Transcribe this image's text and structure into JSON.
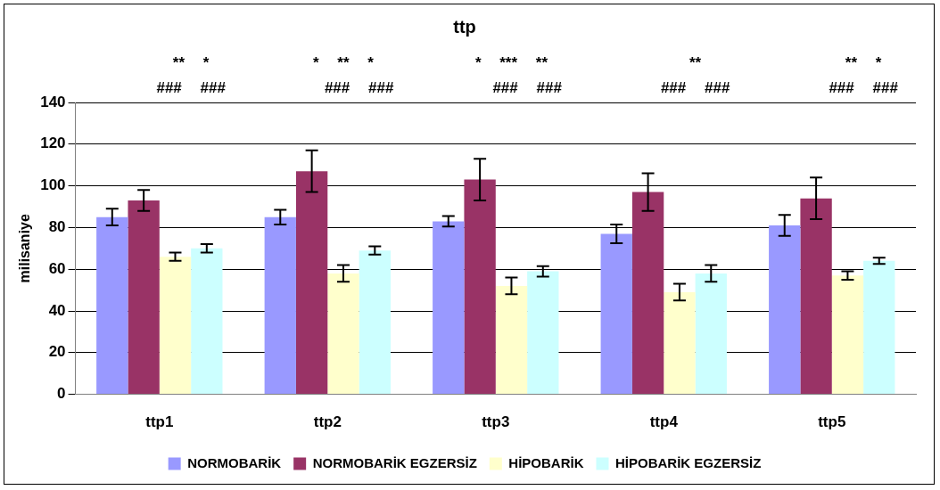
{
  "chart_data": {
    "type": "bar",
    "title": "ttp",
    "ylabel": "milisaniye",
    "categories": [
      "ttp1",
      "ttp2",
      "ttp3",
      "ttp4",
      "ttp5"
    ],
    "series": [
      {
        "name": "NORMOBARİK",
        "color": "#9999ff",
        "values": [
          85,
          85,
          83,
          77,
          81
        ],
        "errors": [
          4,
          3.5,
          2.5,
          4.5,
          5
        ]
      },
      {
        "name": "NORMOBARİK EGZERSİZ",
        "color": "#993366",
        "values": [
          93,
          107,
          103,
          97,
          94
        ],
        "errors": [
          5,
          10,
          10,
          9,
          10
        ]
      },
      {
        "name": "HİPOBARİK",
        "color": "#ffffcc",
        "values": [
          66,
          58,
          52,
          49,
          57
        ],
        "errors": [
          2,
          4,
          4,
          4,
          2
        ]
      },
      {
        "name": "HİPOBARİK EGZERSİZ",
        "color": "#ccffff",
        "values": [
          70,
          69,
          59,
          58,
          64
        ],
        "errors": [
          2,
          2,
          2.5,
          4,
          1.5
        ]
      }
    ],
    "ylim": [
      0,
      140
    ],
    "yticks": [
      0,
      20,
      40,
      60,
      80,
      100,
      120,
      140
    ],
    "grid": "y",
    "legend": "bottom",
    "annotations": [
      "** *",
      "### ###",
      "* ** *",
      "### ###",
      "* *** **",
      "### ###",
      "**",
      "### ###",
      "** *",
      "### ###"
    ]
  }
}
